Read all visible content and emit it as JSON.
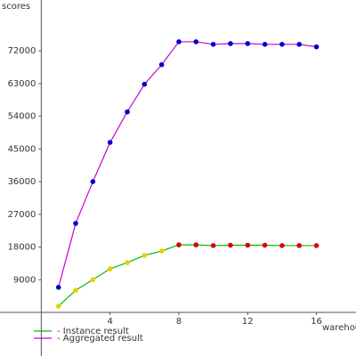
{
  "chart_data": {
    "type": "line",
    "ylabel": "scores",
    "xlabel": "warehou",
    "x": [
      1,
      2,
      3,
      4,
      5,
      6,
      7,
      8,
      9,
      10,
      11,
      12,
      13,
      14,
      15,
      16
    ],
    "series": [
      {
        "name": "- Instance result",
        "color": "#00bb00",
        "marker_colors": [
          "#e8d000",
          "#e8d000",
          "#e8d000",
          "#e8d000",
          "#e8d000",
          "#e8d000",
          "#e8d000",
          "#dd0000",
          "#dd0000",
          "#dd0000",
          "#dd0000",
          "#dd0000",
          "#dd0000",
          "#dd0000",
          "#dd0000",
          "#dd0000"
        ],
        "values": [
          1700,
          6100,
          9000,
          12000,
          13700,
          15700,
          16900,
          18600,
          18600,
          18400,
          18500,
          18500,
          18500,
          18400,
          18400,
          18400
        ]
      },
      {
        "name": "- Aggregated result",
        "color": "#cc00cc",
        "marker_colors": [
          "#0000cc",
          "#0000cc",
          "#0000cc",
          "#0000cc",
          "#0000cc",
          "#0000cc",
          "#0000cc",
          "#0000cc",
          "#0000cc",
          "#0000cc",
          "#0000cc",
          "#0000cc",
          "#0000cc",
          "#0000cc",
          "#0000cc",
          "#0000cc"
        ],
        "values": [
          6900,
          24500,
          36000,
          46800,
          55200,
          62800,
          68200,
          74500,
          74500,
          73800,
          74000,
          74000,
          73800,
          73800,
          73800,
          73100
        ]
      }
    ],
    "xlim": [
      -2.4,
      18.3
    ],
    "ylim": [
      -12000,
      86000
    ],
    "xticks": [
      4,
      8,
      12,
      16
    ],
    "yticks": [
      9000,
      18000,
      27000,
      36000,
      45000,
      54000,
      63000,
      72000
    ],
    "axis_color": "#555555"
  }
}
